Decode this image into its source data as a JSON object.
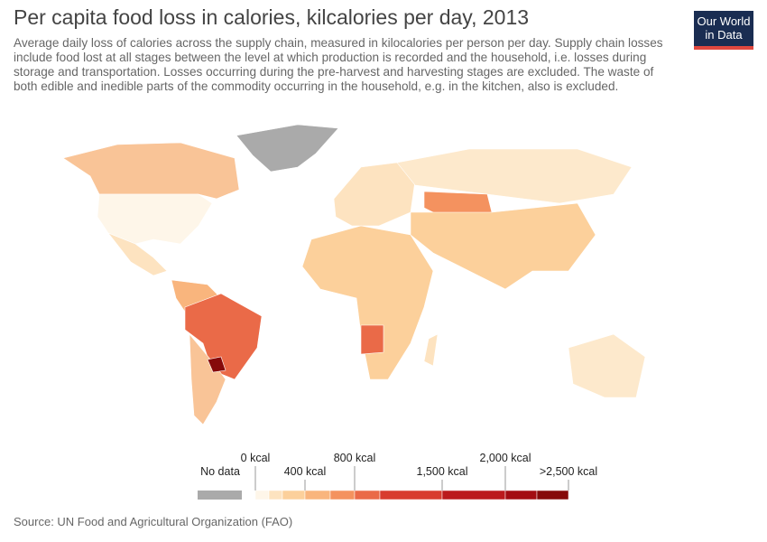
{
  "header": {
    "title": "Per capita food loss in calories, kilcalories per day, 2013",
    "subtitle": "Average daily loss of calories across the supply chain, measured in kilocalories per person per day. Supply chain losses include food lost at all stages between the level at which production is recorded and the household, i.e. losses during storage and transportation. Losses occurring during the pre-harvest and harvesting stages are excluded. The waste of both edible and inedible parts of the commodity occurring in the household, e.g. in the kitchen, also is excluded.",
    "logo": [
      "Our World",
      "in Data"
    ]
  },
  "legend": {
    "no_data": "No data",
    "no_data_color": "#aaaaaa",
    "colors": [
      "#fef6e9",
      "#fde3c0",
      "#fcd09b",
      "#f9b57d",
      "#f4925f",
      "#ea6a48",
      "#d83c2f",
      "#bb1a1c",
      "#a30d12",
      "#860a0a"
    ],
    "labels": [
      "0 kcal",
      "400 kcal",
      "800 kcal",
      "1,500 kcal",
      "2,000 kcal",
      ">2,500 kcal"
    ]
  },
  "footer": {
    "source": "Source: UN Food and Agricultural Organization (FAO)"
  }
}
